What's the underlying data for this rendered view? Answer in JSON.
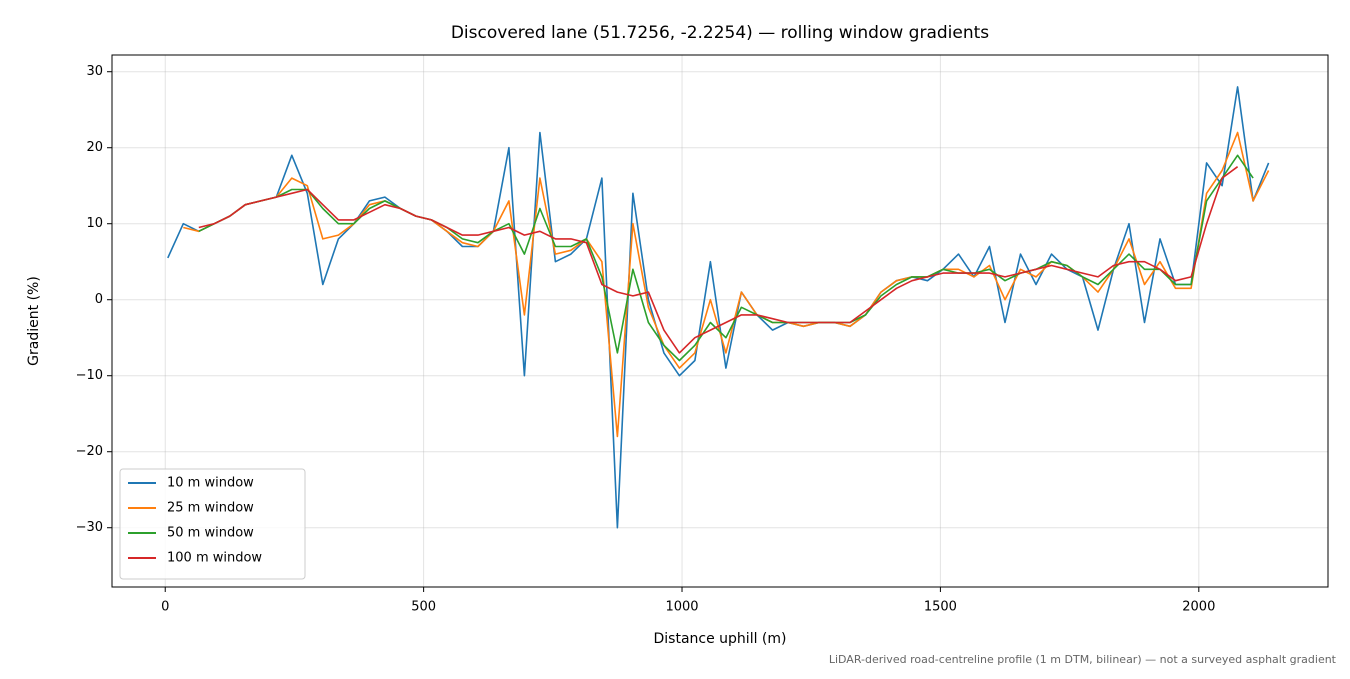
{
  "chart_data": {
    "type": "line",
    "title": "Discovered lane (51.7256, -2.2254) — rolling window gradients",
    "x_label": "Distance uphill (m)",
    "y_label": "Gradient (%)",
    "annotation": "LiDAR-derived road-centreline profile (1 m DTM, bilinear) — not a surveyed asphalt gradient",
    "x": [
      5,
      35,
      65,
      95,
      125,
      155,
      185,
      215,
      245,
      275,
      305,
      335,
      365,
      395,
      425,
      455,
      485,
      515,
      545,
      575,
      605,
      635,
      665,
      695,
      725,
      755,
      785,
      815,
      845,
      875,
      905,
      935,
      965,
      995,
      1025,
      1055,
      1085,
      1115,
      1145,
      1175,
      1205,
      1235,
      1265,
      1295,
      1325,
      1355,
      1385,
      1415,
      1445,
      1475,
      1505,
      1535,
      1565,
      1595,
      1625,
      1655,
      1685,
      1715,
      1745,
      1775,
      1805,
      1835,
      1865,
      1895,
      1925,
      1955,
      1985,
      2015,
      2045,
      2075,
      2105,
      2135
    ],
    "series": [
      {
        "name": "10 m window",
        "color": "#1f77b4",
        "values": [
          5.5,
          10,
          9,
          10,
          11,
          12.5,
          13,
          13.5,
          19,
          14,
          2,
          8,
          10,
          13,
          13.5,
          12,
          11,
          10.5,
          9,
          7,
          7,
          9,
          20,
          -10,
          22,
          5,
          6,
          8,
          16,
          -30,
          14,
          0,
          -7,
          -10,
          -8,
          5,
          -9,
          1,
          -2,
          -4,
          -3,
          -3.5,
          -3,
          -3,
          -3.5,
          -2,
          1,
          2.5,
          3,
          2.5,
          4,
          6,
          3,
          7,
          -3,
          6,
          2,
          6,
          4,
          3,
          -4,
          4,
          10,
          -3,
          8,
          2,
          2,
          18,
          15,
          28,
          13,
          18
        ]
      },
      {
        "name": "25 m window",
        "color": "#ff7f0e",
        "values": [
          null,
          9.5,
          9,
          10,
          11,
          12.5,
          13,
          13.5,
          16,
          15,
          8,
          8.5,
          10,
          12.5,
          13,
          12,
          11,
          10.5,
          9,
          7.5,
          7,
          9,
          13,
          -2,
          16,
          6,
          6.5,
          8,
          5,
          -18,
          10,
          -1,
          -6,
          -9,
          -7,
          0,
          -7,
          1,
          -2,
          -3,
          -3,
          -3.5,
          -3,
          -3,
          -3.5,
          -2,
          1,
          2.5,
          3,
          3,
          4,
          4,
          3,
          4.5,
          0,
          4,
          3,
          5,
          4.5,
          3,
          1,
          4,
          8,
          2,
          5,
          1.5,
          1.5,
          14,
          17,
          22,
          13,
          17
        ]
      },
      {
        "name": "50 m window",
        "color": "#2ca02c",
        "values": [
          null,
          null,
          9,
          10,
          11,
          12.5,
          13,
          13.5,
          14.5,
          14.5,
          12,
          10,
          10,
          12,
          13,
          12,
          11,
          10.5,
          9.5,
          8,
          7.5,
          9,
          10,
          6,
          12,
          7,
          7,
          8,
          3,
          -7,
          4,
          -3,
          -6,
          -8,
          -6,
          -3,
          -5,
          -1,
          -2,
          -3,
          -3,
          -3,
          -3,
          -3,
          -3,
          -2,
          0.5,
          2,
          3,
          3,
          4,
          3.5,
          3.5,
          4,
          2.5,
          3.5,
          4,
          5,
          4.5,
          3,
          2,
          4,
          6,
          4,
          4,
          2,
          2,
          13,
          16,
          19,
          16,
          null
        ]
      },
      {
        "name": "100 m window",
        "color": "#d62728",
        "values": [
          null,
          null,
          9.5,
          10,
          11,
          12.5,
          13,
          13.5,
          14,
          14.5,
          12.5,
          10.5,
          10.5,
          11.5,
          12.5,
          12,
          11,
          10.5,
          9.5,
          8.5,
          8.5,
          9,
          9.5,
          8.5,
          9,
          8,
          8,
          7.5,
          2,
          1,
          0.5,
          1,
          -4,
          -7,
          -5,
          -4,
          -3,
          -2,
          -2,
          -2.5,
          -3,
          -3,
          -3,
          -3,
          -3,
          -1.5,
          0,
          1.5,
          2.5,
          3,
          3.5,
          3.5,
          3.5,
          3.5,
          3,
          3.5,
          4,
          4.5,
          4,
          3.5,
          3,
          4.5,
          5,
          5,
          4,
          2.5,
          3,
          10,
          16,
          17.5,
          null,
          null
        ]
      }
    ],
    "xlim": [
      -103,
      2250
    ],
    "ylim": [
      -37.8,
      32.2
    ],
    "xticks": [
      0,
      500,
      1000,
      1500,
      2000
    ],
    "yticks": [
      {
        "value": -30,
        "label": "−30"
      },
      {
        "value": -20,
        "label": "−20"
      },
      {
        "value": -10,
        "label": "−10"
      },
      0,
      10,
      20,
      30
    ],
    "grid": true,
    "legend": "lower left"
  }
}
